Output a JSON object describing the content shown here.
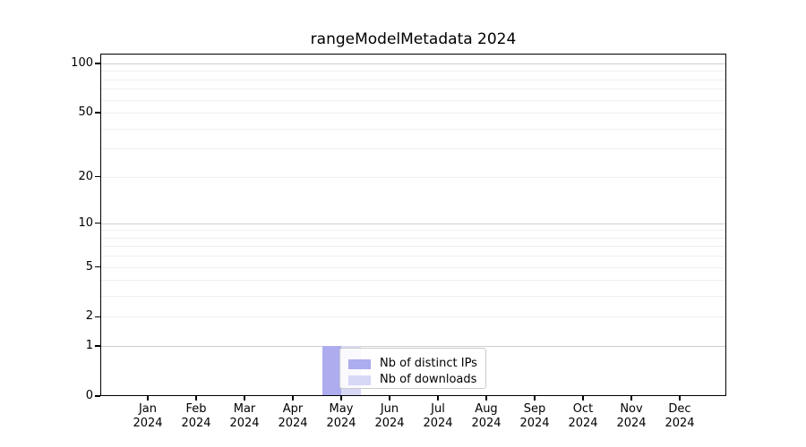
{
  "chart_data": {
    "type": "bar",
    "title": "rangeModelMetadata 2024",
    "categories": [
      "Jan 2024",
      "Feb 2024",
      "Mar 2024",
      "Apr 2024",
      "May 2024",
      "Jun 2024",
      "Jul 2024",
      "Aug 2024",
      "Sep 2024",
      "Oct 2024",
      "Nov 2024",
      "Dec 2024"
    ],
    "x_tick_months": [
      "Jan",
      "Feb",
      "Mar",
      "Apr",
      "May",
      "Jun",
      "Jul",
      "Aug",
      "Sep",
      "Oct",
      "Nov",
      "Dec"
    ],
    "x_tick_year": "2024",
    "series": [
      {
        "name": "Nb of distinct IPs",
        "color": "#acacef",
        "values": [
          0,
          0,
          0,
          0,
          1,
          0,
          0,
          0,
          0,
          0,
          0,
          0
        ]
      },
      {
        "name": "Nb of downloads",
        "color": "#d7d7f6",
        "values": [
          0,
          0,
          0,
          0,
          1,
          0,
          0,
          0,
          0,
          0,
          0,
          0
        ]
      }
    ],
    "y_axis": {
      "scale": "log1p",
      "tick_values": [
        0,
        1,
        2,
        5,
        10,
        20,
        50,
        100
      ],
      "tick_labels": [
        "0",
        "1",
        "2",
        "5",
        "10",
        "20",
        "50",
        "100"
      ],
      "major_gridlines": [
        1,
        10,
        100
      ],
      "minor_gridlines": [
        2,
        3,
        4,
        5,
        6,
        7,
        8,
        9,
        20,
        30,
        40,
        50,
        60,
        70,
        80,
        90
      ],
      "ylim": [
        0,
        115
      ]
    },
    "legend": {
      "entries": [
        "Nb of distinct IPs",
        "Nb of downloads"
      ],
      "position": "lower center"
    },
    "grid": true
  },
  "colors": {
    "major_grid": "#cfcfcf",
    "minor_grid": "#efefef",
    "spine": "#000000",
    "text": "#000000",
    "legend_border": "#cccccc",
    "background": "#ffffff"
  }
}
